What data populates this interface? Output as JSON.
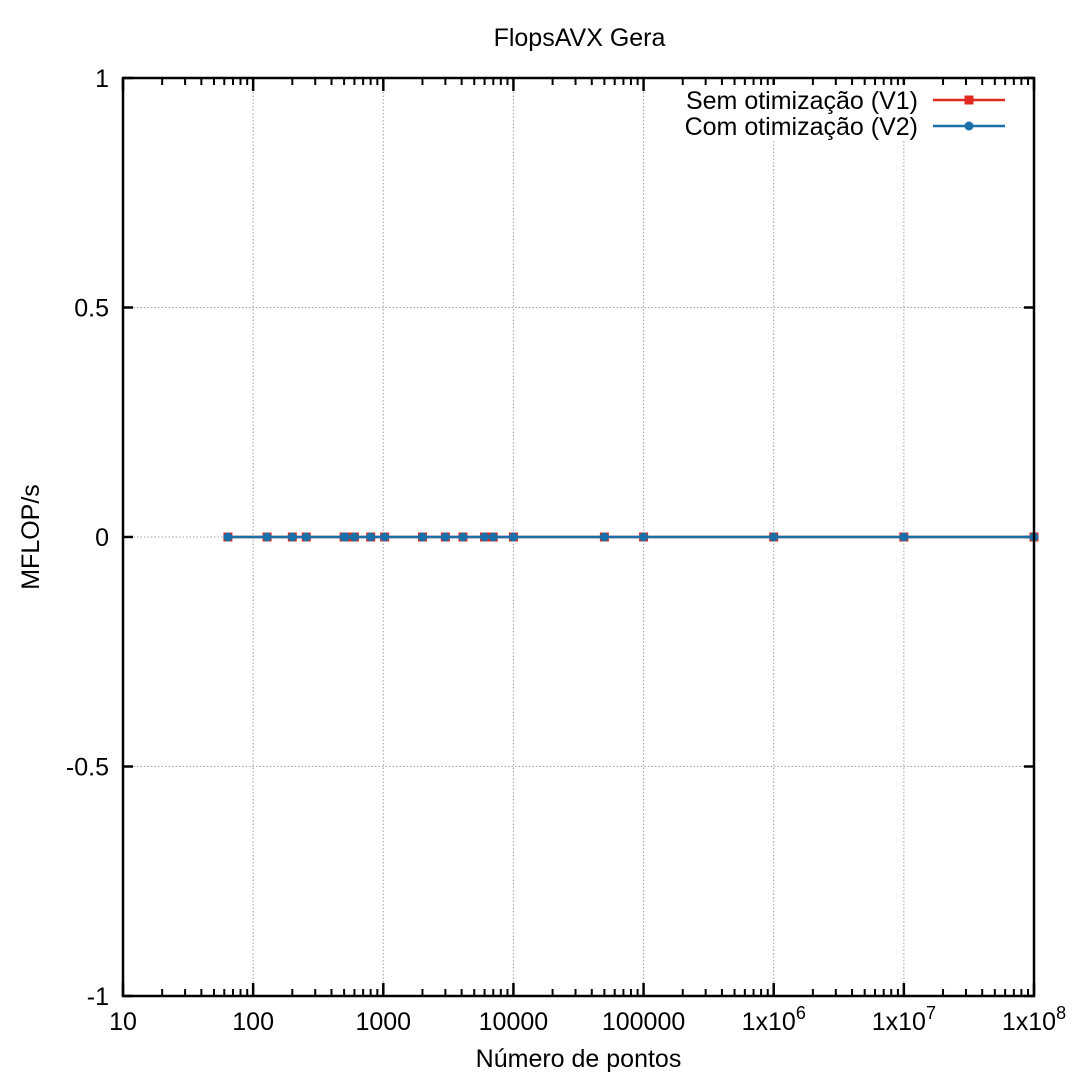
{
  "chart_data": {
    "type": "line",
    "title": "FlopsAVX Gera",
    "xlabel": "Número de pontos",
    "ylabel": "MFLOP/s",
    "xscale": "log",
    "xlim": [
      10,
      100000000
    ],
    "ylim": [
      -1,
      1
    ],
    "grid": true,
    "legend_position": "top-right",
    "x_tick_labels": [
      {
        "base": "10",
        "exp": ""
      },
      {
        "base": "100",
        "exp": ""
      },
      {
        "base": "1000",
        "exp": ""
      },
      {
        "base": "10000",
        "exp": ""
      },
      {
        "base": "100000",
        "exp": ""
      },
      {
        "base": "1x10",
        "exp": "6"
      },
      {
        "base": "1x10",
        "exp": "7"
      },
      {
        "base": "1x10",
        "exp": "8"
      }
    ],
    "y_tick_labels": [
      "1",
      "0.5",
      "0",
      "-0.5",
      "-1"
    ],
    "series": [
      {
        "name": "Sem otimização (V1)",
        "color": "#e0281e",
        "marker": "square",
        "x": [
          64,
          128,
          200,
          256,
          500,
          512,
          600,
          800,
          1024,
          2000,
          3000,
          4096,
          6000,
          7000,
          10000,
          50000,
          100000,
          1000000,
          10000000,
          100000000
        ],
        "y": [
          0,
          0,
          0,
          0,
          0,
          0,
          0,
          0,
          0,
          0,
          0,
          0,
          0,
          0,
          0,
          0,
          0,
          0,
          0,
          0
        ]
      },
      {
        "name": "Com otimização (V2)",
        "color": "#1a6fa8",
        "marker": "circle",
        "x": [
          64,
          128,
          200,
          256,
          500,
          512,
          600,
          800,
          1024,
          2000,
          3000,
          4096,
          6000,
          7000,
          10000,
          50000,
          100000,
          1000000,
          10000000,
          100000000
        ],
        "y": [
          0,
          0,
          0,
          0,
          0,
          0,
          0,
          0,
          0,
          0,
          0,
          0,
          0,
          0,
          0,
          0,
          0,
          0,
          0,
          0
        ]
      }
    ]
  }
}
